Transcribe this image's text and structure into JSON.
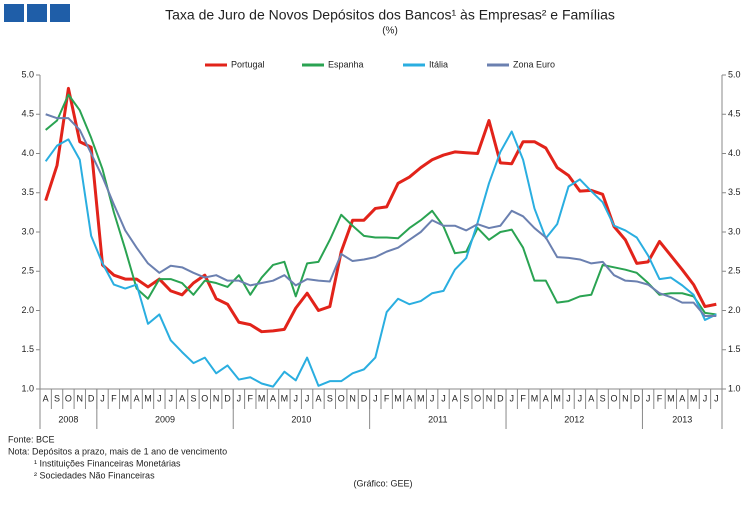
{
  "chart_data": {
    "type": "line",
    "title": "Taxa de Juro de Novos Depósitos dos Bancos¹ às Empresas² e Famílias",
    "subtitle": "(%)",
    "year_groups": [
      {
        "label": "2008",
        "months": [
          "A",
          "S",
          "O",
          "N",
          "D"
        ]
      },
      {
        "label": "2009",
        "months": [
          "J",
          "F",
          "M",
          "A",
          "M",
          "J",
          "J",
          "A",
          "S",
          "O",
          "N",
          "D"
        ]
      },
      {
        "label": "2010",
        "months": [
          "J",
          "F",
          "M",
          "A",
          "M",
          "J",
          "J",
          "A",
          "S",
          "O",
          "N",
          "D"
        ]
      },
      {
        "label": "2011",
        "months": [
          "J",
          "F",
          "M",
          "A",
          "M",
          "J",
          "J",
          "A",
          "S",
          "O",
          "N",
          "D"
        ]
      },
      {
        "label": "2012",
        "months": [
          "J",
          "F",
          "M",
          "A",
          "M",
          "J",
          "J",
          "A",
          "S",
          "O",
          "N",
          "D"
        ]
      },
      {
        "label": "2013",
        "months": [
          "J",
          "F",
          "M",
          "A",
          "M",
          "J",
          "J"
        ]
      }
    ],
    "series": [
      {
        "name": "Portugal",
        "color": "#e2231a",
        "values": [
          3.4,
          3.85,
          4.83,
          4.15,
          4.08,
          2.58,
          2.45,
          2.4,
          2.4,
          2.3,
          2.4,
          2.25,
          2.2,
          2.35,
          2.45,
          2.15,
          2.08,
          1.85,
          1.82,
          1.73,
          1.74,
          1.76,
          2.03,
          2.22,
          2.0,
          2.05,
          2.75,
          3.15,
          3.15,
          3.3,
          3.32,
          3.62,
          3.7,
          3.82,
          3.92,
          3.98,
          4.02,
          4.01,
          4.0,
          4.42,
          3.88,
          3.87,
          4.15,
          4.15,
          4.07,
          3.82,
          3.72,
          3.52,
          3.53,
          3.48,
          3.07,
          2.9,
          2.6,
          2.62,
          2.88,
          2.7,
          2.52,
          2.33,
          2.05,
          2.08
        ]
      },
      {
        "name": "Espanha",
        "color": "#2aa352",
        "values": [
          4.3,
          4.42,
          4.75,
          4.55,
          4.2,
          3.8,
          3.25,
          2.78,
          2.28,
          2.15,
          2.4,
          2.4,
          2.35,
          2.2,
          2.38,
          2.35,
          2.3,
          2.45,
          2.2,
          2.42,
          2.58,
          2.62,
          2.18,
          2.6,
          2.62,
          2.9,
          3.22,
          3.08,
          2.95,
          2.93,
          2.93,
          2.92,
          3.05,
          3.15,
          3.27,
          3.07,
          2.73,
          2.75,
          3.05,
          2.9,
          3.0,
          3.03,
          2.8,
          2.38,
          2.38,
          2.1,
          2.12,
          2.18,
          2.2,
          2.58,
          2.55,
          2.52,
          2.48,
          2.35,
          2.2,
          2.22,
          2.22,
          2.18,
          1.97,
          1.95
        ]
      },
      {
        "name": "Itália",
        "color": "#2aaee0",
        "values": [
          3.9,
          4.1,
          4.18,
          3.92,
          2.95,
          2.6,
          2.33,
          2.28,
          2.33,
          1.83,
          1.95,
          1.62,
          1.47,
          1.33,
          1.4,
          1.2,
          1.3,
          1.12,
          1.15,
          1.07,
          1.03,
          1.22,
          1.11,
          1.4,
          1.04,
          1.1,
          1.1,
          1.2,
          1.25,
          1.4,
          1.98,
          2.15,
          2.08,
          2.12,
          2.22,
          2.25,
          2.52,
          2.67,
          3.12,
          3.62,
          4.02,
          4.28,
          3.92,
          3.3,
          2.92,
          3.1,
          3.58,
          3.67,
          3.52,
          3.38,
          3.08,
          3.02,
          2.93,
          2.7,
          2.4,
          2.42,
          2.32,
          2.2,
          1.88,
          1.95
        ]
      },
      {
        "name": "Zona Euro",
        "color": "#6b80b0",
        "values": [
          4.5,
          4.45,
          4.45,
          4.3,
          4.0,
          3.7,
          3.35,
          3.02,
          2.8,
          2.6,
          2.48,
          2.57,
          2.55,
          2.48,
          2.42,
          2.45,
          2.38,
          2.38,
          2.32,
          2.35,
          2.38,
          2.45,
          2.32,
          2.4,
          2.38,
          2.37,
          2.72,
          2.63,
          2.65,
          2.68,
          2.75,
          2.8,
          2.9,
          3.0,
          3.15,
          3.08,
          3.08,
          3.02,
          3.1,
          3.05,
          3.08,
          3.27,
          3.2,
          3.05,
          2.93,
          2.68,
          2.67,
          2.65,
          2.6,
          2.62,
          2.45,
          2.38,
          2.37,
          2.33,
          2.22,
          2.17,
          2.1,
          2.1,
          1.93,
          1.93
        ]
      }
    ],
    "ylim": [
      1.0,
      5.0
    ],
    "yticks": [
      {
        "value": 1.0,
        "label": "1.0"
      },
      {
        "value": 1.5,
        "label": "1.5"
      },
      {
        "value": 2.0,
        "label": "2.0"
      },
      {
        "value": 2.5,
        "label": "2.5"
      },
      {
        "value": 3.0,
        "label": "3.0"
      },
      {
        "value": 3.5,
        "label": "3.5"
      },
      {
        "value": 4.0,
        "label": "4.0"
      },
      {
        "value": 4.5,
        "label": "4.5"
      },
      {
        "value": 5.0,
        "label": "5.0"
      }
    ],
    "y2lim": [
      1.0,
      5.0
    ],
    "y2ticks": [
      {
        "value": 1.0,
        "label": "1.0"
      },
      {
        "value": 1.5,
        "label": "1.5"
      },
      {
        "value": 2.0,
        "label": "2.0"
      },
      {
        "value": 2.5,
        "label": "2.5"
      },
      {
        "value": 3.0,
        "label": "3.0"
      },
      {
        "value": 3.5,
        "label": "3.5"
      },
      {
        "value": 4.0,
        "label": "4.0"
      },
      {
        "value": 4.5,
        "label": "4.5"
      },
      {
        "value": 5.0,
        "label": "5.0"
      }
    ],
    "legend": "top",
    "grid": false,
    "notes": [
      "Fonte: BCE",
      "Nota: Depósitos a prazo, mais de 1 ano de vencimento",
      "¹ Instituições Financeiras Monetárias",
      "² Sociedades Não Financeiras"
    ],
    "credit": "(Gráfico: GEE)"
  }
}
